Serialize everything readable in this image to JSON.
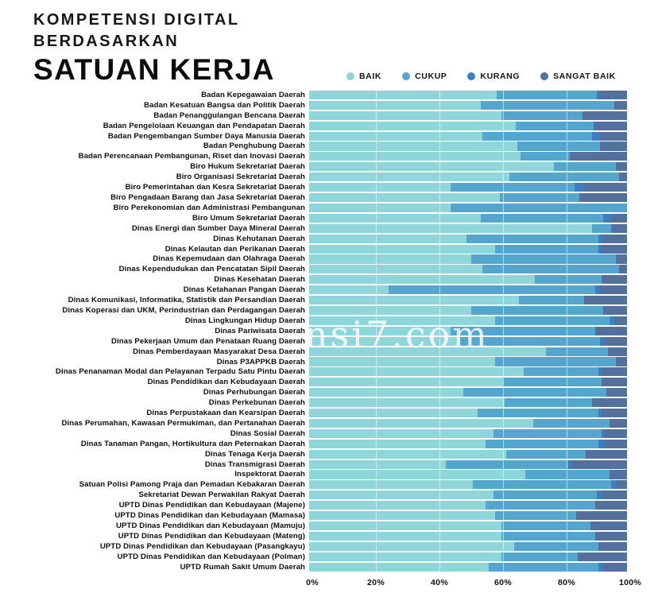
{
  "header": {
    "title_line1": "KOMPETENSI DIGITAL",
    "title_line2": "BERDASARKAN",
    "title_line3": "SATUAN KERJA"
  },
  "watermark": "nsi7.com",
  "legend": {
    "items": [
      {
        "label": "BAIK",
        "color": "#8FD6DB"
      },
      {
        "label": "CUKUP",
        "color": "#55A6CE"
      },
      {
        "label": "KURANG",
        "color": "#3D7EC1"
      },
      {
        "label": "SANGAT BAIK",
        "color": "#54719E"
      }
    ]
  },
  "chart_data": {
    "type": "bar",
    "stacked": true,
    "orientation": "horizontal",
    "title": "KOMPETENSI DIGITAL BERDASARKAN SATUAN KERJA",
    "xlabel": "",
    "ylabel": "",
    "xlim": [
      0,
      100
    ],
    "x_axis_ticks": [
      "0%",
      "20%",
      "40%",
      "60%",
      "80%",
      "100%"
    ],
    "grid": true,
    "legend_position": "top-right",
    "series_names": [
      "BAIK",
      "CUKUP",
      "KURANG",
      "SANGAT BAIK"
    ],
    "colors": {
      "BAIK": "#8FD6DB",
      "CUKUP": "#55A6CE",
      "KURANG": "#3D7EC1",
      "SANGAT BAIK": "#54719E"
    },
    "rows": [
      {
        "label": "Badan Kepegawaian Daerah",
        "values": [
          59,
          31.5,
          1,
          8.5
        ]
      },
      {
        "label": "Badan Kesatuan Bangsa dan Politik Daerah",
        "values": [
          54,
          42,
          0,
          4
        ]
      },
      {
        "label": "Badan Penanggulangan Bencana Daerah",
        "values": [
          60.5,
          25.5,
          0,
          14
        ]
      },
      {
        "label": "Badan Pengelolaan Keuangan dan Pendapatan Daerah",
        "values": [
          65,
          24.5,
          0,
          10.5
        ]
      },
      {
        "label": "Badan Pengembangan Sumber Daya Manusia Daerah",
        "values": [
          54.5,
          34.5,
          2.5,
          8.5
        ]
      },
      {
        "label": "Badan Penghubung Daerah",
        "values": [
          65.5,
          26,
          0,
          8.5
        ]
      },
      {
        "label": "Badan Perencanaan Pembangunan, Riset dan Inovasi Daerah",
        "values": [
          66.5,
          15.5,
          0,
          18
        ]
      },
      {
        "label": "Biro Hukum Sekretariat Daerah",
        "values": [
          77,
          19.5,
          0,
          3.5
        ]
      },
      {
        "label": "Biro Organisasi Sekretariat Daerah",
        "values": [
          63,
          34.5,
          0,
          2.5
        ]
      },
      {
        "label": "Biro Pemerintahan dan Kesra Sekretariat Daerah",
        "values": [
          44.5,
          39,
          3,
          13.5
        ]
      },
      {
        "label": "Biro Pengadaan Barang dan Jasa Sekretariat Daerah",
        "values": [
          60,
          25,
          0,
          15
        ]
      },
      {
        "label": "Biro Perekonomian dan Administrasi Pembangunan",
        "values": [
          44.5,
          55.5,
          0,
          0
        ]
      },
      {
        "label": "Biro Umum Sekretariat Daerah",
        "values": [
          54,
          38.5,
          2.5,
          5
        ]
      },
      {
        "label": "Dinas Energi dan Sumber Daya Mineral Daerah",
        "values": [
          89,
          6,
          0,
          5
        ]
      },
      {
        "label": "Dinas Kehutanan Daerah",
        "values": [
          49.5,
          41.5,
          1.5,
          7.5
        ]
      },
      {
        "label": "Dinas Kelautan dan Perikanan Daerah",
        "values": [
          58.5,
          32.5,
          1,
          8
        ]
      },
      {
        "label": "Dinas Kepemudaan dan Olahraga Daerah",
        "values": [
          51,
          45.5,
          0,
          3.5
        ]
      },
      {
        "label": "Dinas Kependudukan dan Pencatatan Sipil Daerah",
        "values": [
          54.5,
          43,
          0,
          2.5
        ]
      },
      {
        "label": "Dinas Kesehatan Daerah",
        "values": [
          71,
          21,
          0,
          8
        ]
      },
      {
        "label": "Dinas Ketahanan Pangan Daerah",
        "values": [
          25,
          65,
          1.5,
          8.5
        ]
      },
      {
        "label": "Dinas Komunikasi, Informatika, Statistik dan Persandian Daerah",
        "values": [
          66,
          20.5,
          0,
          13.5
        ]
      },
      {
        "label": "Dinas Koperasi dan UKM, Perindustrian dan Perdagangan Daerah",
        "values": [
          51,
          41.5,
          0,
          7.5
        ]
      },
      {
        "label": "Dinas Lingkungan Hidup Daerah",
        "values": [
          58.5,
          36,
          1.5,
          4
        ]
      },
      {
        "label": "Dinas Pariwisata Daerah",
        "values": [
          44.5,
          45.5,
          0,
          10
        ]
      },
      {
        "label": "Dinas Pekerjaan Umum dan Penataan Ruang Daerah",
        "values": [
          47.5,
          44,
          1.5,
          7
        ]
      },
      {
        "label": "Dinas Pemberdayaan Masyarakat Desa Daerah",
        "values": [
          74.5,
          19.5,
          0,
          6
        ]
      },
      {
        "label": "Dinas P3APPKB Daerah",
        "values": [
          58.5,
          38,
          0,
          3.5
        ]
      },
      {
        "label": "Dinas Penanaman Modal dan Pelayanan Terpadu Satu Pintu Daerah",
        "values": [
          67.5,
          23.5,
          1,
          8
        ]
      },
      {
        "label": "Dinas Pendidikan dan Kebudayaan Daerah",
        "values": [
          61,
          31,
          0,
          8
        ]
      },
      {
        "label": "Dinas Perhubungan Daerah",
        "values": [
          48.5,
          45,
          0,
          6.5
        ]
      },
      {
        "label": "Dinas Perkebunan Daerah",
        "values": [
          61.5,
          27.5,
          0,
          11
        ]
      },
      {
        "label": "Dinas Perpustakaan dan Kearsipan Daerah",
        "values": [
          53,
          38,
          1,
          8
        ]
      },
      {
        "label": "Dinas Perumahan, Kawasan Permukiman, dan Pertanahan Daerah",
        "values": [
          70.5,
          24,
          0,
          5.5
        ]
      },
      {
        "label": "Dinas Sosial Daerah",
        "values": [
          58,
          34,
          1,
          7
        ]
      },
      {
        "label": "Dinas Tanaman Pangan, Hortikultura dan Peternakan Daerah",
        "values": [
          55.5,
          35.5,
          2,
          7
        ]
      },
      {
        "label": "Dinas Tenaga Kerja Daerah",
        "values": [
          62,
          25,
          0,
          13
        ]
      },
      {
        "label": "Dinas Transmigrasi Daerah",
        "values": [
          43,
          38.5,
          1,
          17.5
        ]
      },
      {
        "label": "Inspektorat Daerah",
        "values": [
          68,
          26.5,
          0,
          5.5
        ]
      },
      {
        "label": "Satuan Polisi Pamong Praja dan Pemadan Kebakaran Daerah",
        "values": [
          51.5,
          43.5,
          1.5,
          3.5
        ]
      },
      {
        "label": "Sekretariat Dewan Perwakilan Rakyat Daerah",
        "values": [
          58,
          32.5,
          1.5,
          8
        ]
      },
      {
        "label": "UPTD Dinas Pendidikan dan Kebudayaan (Majene)",
        "values": [
          55.5,
          34.5,
          0,
          10
        ]
      },
      {
        "label": "UPTD Dinas Pendidikan dan Kebudayaan (Mamasa)",
        "values": [
          58.5,
          25.5,
          0,
          16
        ]
      },
      {
        "label": "UPTD Dinas Pendidikan dan Kebudayaan (Mamuju)",
        "values": [
          60.5,
          28,
          0,
          11.5
        ]
      },
      {
        "label": "UPTD Dinas Pendidikan dan Kebudayaan (Mateng)",
        "values": [
          60.5,
          29.5,
          0,
          10
        ]
      },
      {
        "label": "UPTD Dinas Pendidikan dan Kebudayaan (Pasangkayu)",
        "values": [
          64.5,
          26.5,
          0,
          9
        ]
      },
      {
        "label": "UPTD Dinas Pendidikan dan Kebudayaan (Polman)",
        "values": [
          60.5,
          24,
          0,
          15.5
        ]
      },
      {
        "label": "UPTD Rumah Sakit Umum Daerah",
        "values": [
          56.5,
          34.5,
          1.5,
          7.5
        ]
      }
    ]
  }
}
